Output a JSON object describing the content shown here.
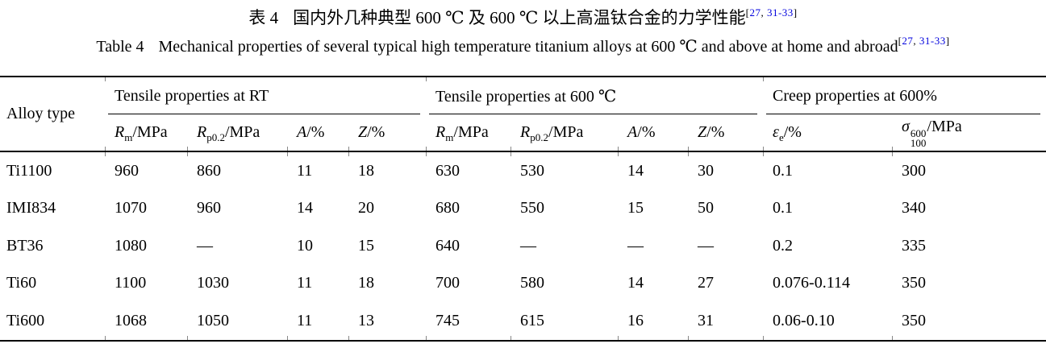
{
  "title": {
    "zh_label": "表 4",
    "zh_text": "国内外几种典型 600 ℃ 及 600 ℃ 以上高温钛合金的力学性能",
    "en_label": "Table 4",
    "en_text": "Mechanical properties of several typical high temperature titanium alloys at 600 ℃ and above at home and abroad"
  },
  "citation": {
    "open": "[",
    "num1": "27",
    "sep": ", ",
    "num2": "31-33",
    "close": "]",
    "link_color": "#0000dd"
  },
  "table": {
    "row_header": "Alloy type",
    "groups": [
      {
        "label": "Tensile properties at RT",
        "span": 4
      },
      {
        "label": "Tensile properties at 600 ℃",
        "span": 4
      },
      {
        "label": "Creep properties at 600%",
        "span": 2
      }
    ],
    "columns": [
      {
        "sym": "R",
        "sub": "m",
        "unit": "/MPa"
      },
      {
        "sym": "R",
        "sub": "p0.2",
        "unit": "/MPa"
      },
      {
        "sym": "A",
        "sub": "",
        "unit": "/%"
      },
      {
        "sym": "Z",
        "sub": "",
        "unit": "/%"
      },
      {
        "sym": "R",
        "sub": "m",
        "unit": "/MPa"
      },
      {
        "sym": "R",
        "sub": "p0.2",
        "unit": "/MPa"
      },
      {
        "sym": "A",
        "sub": "",
        "unit": "/%"
      },
      {
        "sym": "Z",
        "sub": "",
        "unit": "/%"
      },
      {
        "sym": "ε",
        "sub": "e",
        "unit": "/%"
      },
      {
        "sym": "σ",
        "sup": "600",
        "sub": "100",
        "unit": "/MPa"
      }
    ],
    "rows": [
      {
        "alloy": "Ti1100",
        "values": [
          "960",
          "860",
          "11",
          "18",
          "630",
          "530",
          "14",
          "30",
          "0.1",
          "300"
        ]
      },
      {
        "alloy": "IMI834",
        "values": [
          "1070",
          "960",
          "14",
          "20",
          "680",
          "550",
          "15",
          "50",
          "0.1",
          "340"
        ]
      },
      {
        "alloy": "BT36",
        "values": [
          "1080",
          "—",
          "10",
          "15",
          "640",
          "—",
          "—",
          "—",
          "0.2",
          "335"
        ]
      },
      {
        "alloy": "Ti60",
        "values": [
          "1100",
          "1030",
          "11",
          "18",
          "700",
          "580",
          "14",
          "27",
          "0.076-0.114",
          "350"
        ]
      },
      {
        "alloy": "Ti600",
        "values": [
          "1068",
          "1050",
          "11",
          "13",
          "745",
          "615",
          "16",
          "31",
          "0.06-0.10",
          "350"
        ]
      }
    ]
  }
}
